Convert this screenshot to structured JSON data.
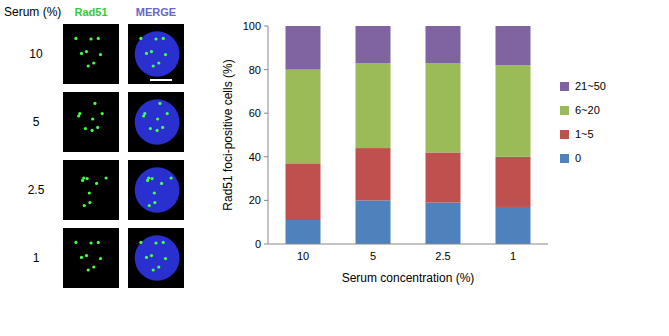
{
  "figure": {
    "row_header": "Serum (%)",
    "columns": [
      "Rad51",
      "MERGE"
    ],
    "rows": [
      "10",
      "5",
      "2.5",
      "1"
    ]
  },
  "chart_data": {
    "type": "bar",
    "stacked": true,
    "legend": "right",
    "y_label": "Rad51 foci-positive cells (%)",
    "x_label": "Serum concentration (%)",
    "categories": [
      "10",
      "5",
      "2.5",
      "1"
    ],
    "ylim": [
      0,
      100
    ],
    "yticks": [
      0,
      20,
      40,
      60,
      80,
      100
    ],
    "series": [
      {
        "name": "0",
        "color": "#4f81bd",
        "values": [
          11,
          20,
          19,
          17
        ]
      },
      {
        "name": "1~5",
        "color": "#c0504d",
        "values": [
          26,
          24,
          23,
          23
        ]
      },
      {
        "name": "6~20",
        "color": "#9bbb59",
        "values": [
          43,
          39,
          41,
          42
        ]
      },
      {
        "name": "21~50",
        "color": "#8064a2",
        "values": [
          20,
          17,
          17,
          18
        ]
      }
    ]
  }
}
